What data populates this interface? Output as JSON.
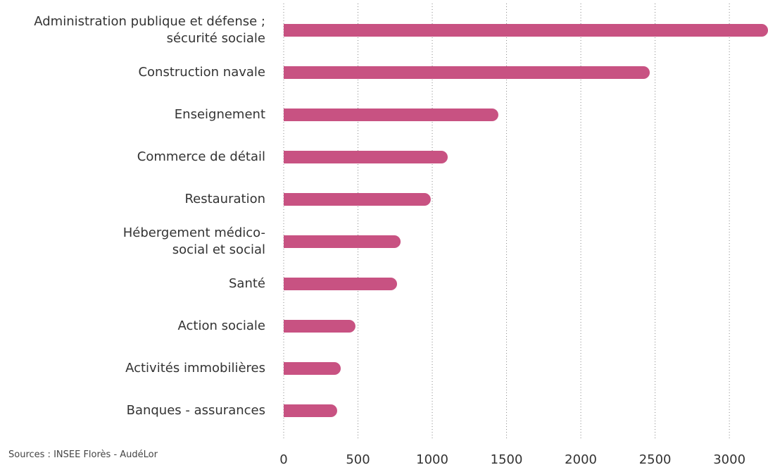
{
  "chart_data": {
    "type": "bar",
    "orientation": "horizontal",
    "categories": [
      "Administration publique et défense ;\nsécurité sociale",
      "Construction navale",
      "Enseignement",
      "Commerce de détail",
      "Restauration",
      "Hébergement médico-\nsocial et social",
      "Santé",
      "Action sociale",
      "Activités immobilières",
      "Banques - assurances"
    ],
    "values": [
      3260,
      2464,
      1445,
      1104,
      990,
      787,
      763,
      483,
      384,
      360
    ],
    "color": "#c85282",
    "xlim": [
      0,
      3260
    ],
    "xticks": [
      0,
      500,
      1000,
      1500,
      2000,
      2500,
      3000
    ],
    "grid": true,
    "source": "Sources : INSEE Florès - AudéLor"
  }
}
